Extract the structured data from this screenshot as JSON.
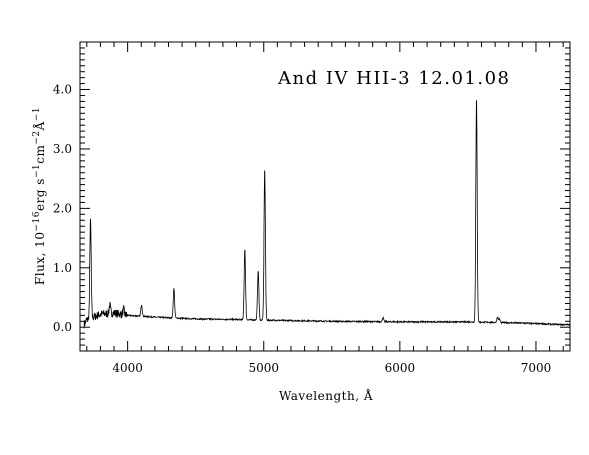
{
  "chart_data": {
    "type": "line",
    "title": "And IV HII-3 12.01.08",
    "xlabel": "Wavelength, Å",
    "ylabel_parts": [
      "Flux, 10",
      "−16",
      "erg s",
      "−1",
      "cm",
      "−2",
      "Å",
      "−1"
    ],
    "xlim": [
      3650,
      7250
    ],
    "ylim": [
      -0.4,
      4.8
    ],
    "x_ticks": [
      4000,
      5000,
      6000,
      7000
    ],
    "x_tick_labels": [
      "4000",
      "5000",
      "6000",
      "7000"
    ],
    "y_ticks": [
      0.0,
      1.0,
      2.0,
      3.0,
      4.0
    ],
    "y_tick_labels": [
      "0.0",
      "1.0",
      "2.0",
      "3.0",
      "4.0"
    ],
    "grid": false,
    "series": [
      {
        "continuum": [
          [
            3680,
            0.05
          ],
          [
            3700,
            0.12
          ],
          [
            3800,
            0.22
          ],
          [
            3900,
            0.24
          ],
          [
            4000,
            0.2
          ],
          [
            4200,
            0.17
          ],
          [
            4500,
            0.14
          ],
          [
            4800,
            0.13
          ],
          [
            5000,
            0.12
          ],
          [
            5500,
            0.1
          ],
          [
            6000,
            0.09
          ],
          [
            6500,
            0.09
          ],
          [
            6900,
            0.07
          ],
          [
            7250,
            0.04
          ]
        ],
        "lines": [
          {
            "x": 3727,
            "peak": 1.8
          },
          {
            "x": 3869,
            "peak": 0.37
          },
          {
            "x": 3970,
            "peak": 0.3
          },
          {
            "x": 4102,
            "peak": 0.38
          },
          {
            "x": 4340,
            "peak": 0.65
          },
          {
            "x": 4861,
            "peak": 1.32
          },
          {
            "x": 4959,
            "peak": 0.95
          },
          {
            "x": 5007,
            "peak": 2.68
          },
          {
            "x": 5876,
            "peak": 0.16
          },
          {
            "x": 6563,
            "peak": 3.88
          },
          {
            "x": 6717,
            "peak": 0.17
          },
          {
            "x": 6731,
            "peak": 0.14
          }
        ]
      }
    ]
  }
}
